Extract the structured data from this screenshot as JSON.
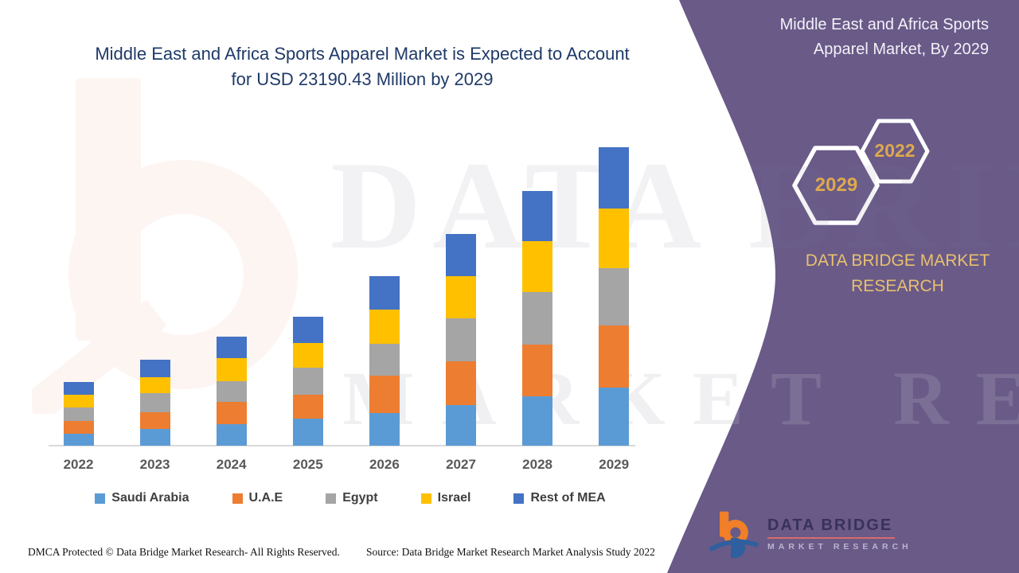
{
  "title": {
    "line1": "Middle East and Africa Sports Apparel Market is Expected to Account",
    "line2": "for USD 23190.43 Million by 2029"
  },
  "side_panel": {
    "bg_color": "#695a88",
    "title_line1": "Middle East and Africa Sports",
    "title_line2": "Apparel Market, By 2029",
    "hex_small_label": "2022",
    "hex_large_label": "2029",
    "brand_line1": "DATA BRIDGE MARKET",
    "brand_line2": "RESEARCH",
    "accent_gold": "#dda94e"
  },
  "watermark": {
    "line1": "DATA BRIDGE",
    "line2": "MARKET RESEARCH"
  },
  "logo": {
    "name": "DATA BRIDGE",
    "subtitle": "MARKET RESEARCH"
  },
  "footer": {
    "left": "DMCA Protected © Data Bridge Market Research- All Rights Reserved.",
    "right": "Source: Data Bridge Market Research Market Analysis Study 2022"
  },
  "chart_data": {
    "type": "bar",
    "stacked": true,
    "title": "Middle East and Africa Sports Apparel Market is Expected to Account for USD 23190.43 Million by 2029",
    "value_unit": "USD Million",
    "categories": [
      "2022",
      "2023",
      "2024",
      "2025",
      "2026",
      "2027",
      "2028",
      "2029"
    ],
    "series": [
      {
        "name": "Saudi Arabia",
        "color": "#5B9BD5",
        "values": [
          930,
          1280,
          1670,
          2100,
          2530,
          3150,
          3830,
          4520
        ]
      },
      {
        "name": "U.A.E",
        "color": "#ED7D31",
        "values": [
          990,
          1300,
          1730,
          1850,
          2890,
          3400,
          4020,
          4825
        ]
      },
      {
        "name": "Egypt",
        "color": "#A5A5A5",
        "values": [
          1030,
          1480,
          1610,
          2100,
          2470,
          3340,
          4080,
          4455
        ]
      },
      {
        "name": "Israel",
        "color": "#FFC000",
        "values": [
          1030,
          1260,
          1790,
          1920,
          2680,
          3270,
          3960,
          4640
        ]
      },
      {
        "name": "Rest of MEA",
        "color": "#4472C4",
        "values": [
          970,
          1340,
          1670,
          2040,
          2580,
          3270,
          3890,
          4750
        ]
      }
    ],
    "totals": [
      4950,
      6660,
      8470,
      10010,
      13150,
      16430,
      19780,
      23190
    ],
    "ylim": [
      0,
      24000
    ],
    "grid": false,
    "legend_position": "bottom"
  }
}
